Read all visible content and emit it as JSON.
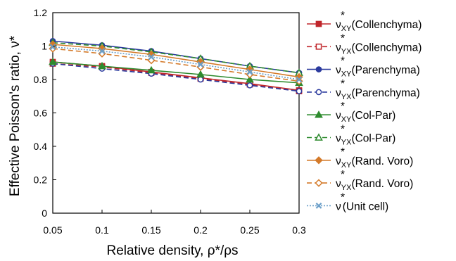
{
  "chart_data": {
    "type": "line",
    "title": "",
    "xlabel": "Relative density, ρ*/ρs",
    "ylabel": "Effective Poisson's ratio, ν*",
    "xlim": [
      0.05,
      0.3
    ],
    "ylim": [
      0,
      1.2
    ],
    "x": [
      0.05,
      0.1,
      0.15,
      0.2,
      0.25,
      0.3
    ],
    "x_tick_labels": [
      "0.05",
      "0.1",
      "0.15",
      "0.2",
      "0.25",
      "0.3"
    ],
    "y_tick_labels": [
      "0",
      "0.2",
      "0.4",
      "0.6",
      "0.8",
      "1",
      "1.2"
    ],
    "grid": false,
    "legend_position": "right",
    "series": [
      {
        "name": "ν*XY (Collenchyma)",
        "sym": "ν",
        "sub": "XY",
        "tail": "(Collenchyma)",
        "color": "#c0262b",
        "dash": "solid",
        "marker": "square",
        "filled": true,
        "values": [
          0.905,
          0.88,
          0.845,
          0.81,
          0.775,
          0.735
        ]
      },
      {
        "name": "ν*YX (Collenchyma)",
        "sym": "ν",
        "sub": "YX",
        "tail": "(Collenchyma)",
        "color": "#c0262b",
        "dash": "dashed",
        "marker": "square",
        "filled": false,
        "values": [
          0.895,
          0.875,
          0.84,
          0.805,
          0.77,
          0.73
        ]
      },
      {
        "name": "ν*XY (Parenchyma)",
        "sym": "ν",
        "sub": "XY",
        "tail": "(Parenchyma)",
        "color": "#2b3a9e",
        "dash": "solid",
        "marker": "circle",
        "filled": true,
        "values": [
          1.03,
          1.005,
          0.97,
          0.925,
          0.88,
          0.84
        ]
      },
      {
        "name": "ν*YX (Parenchyma)",
        "sym": "ν",
        "sub": "YX",
        "tail": "(Parenchyma)",
        "color": "#2b3a9e",
        "dash": "dashed",
        "marker": "circle",
        "filled": false,
        "values": [
          0.895,
          0.865,
          0.835,
          0.8,
          0.765,
          0.73
        ]
      },
      {
        "name": "ν*XY (Col-Par)",
        "sym": "ν",
        "sub": "XY",
        "tail": "(Col-Par)",
        "color": "#2e8b2e",
        "dash": "solid",
        "marker": "triangle",
        "filled": true,
        "values": [
          0.905,
          0.88,
          0.855,
          0.83,
          0.8,
          0.78
        ]
      },
      {
        "name": "ν*YX (Col-Par)",
        "sym": "ν",
        "sub": "YX",
        "tail": "(Col-Par)",
        "color": "#2e8b2e",
        "dash": "dashed",
        "marker": "triangle",
        "filled": false,
        "values": [
          1.02,
          1.0,
          0.965,
          0.925,
          0.88,
          0.84
        ]
      },
      {
        "name": "ν*XY (Rand. Voro)",
        "sym": "ν",
        "sub": "XY",
        "tail": "(Rand. Voro)",
        "color": "#d47a2a",
        "dash": "solid",
        "marker": "diamond",
        "filled": true,
        "values": [
          1.01,
          0.985,
          0.95,
          0.905,
          0.86,
          0.815
        ]
      },
      {
        "name": "ν*YX (Rand. Voro)",
        "sym": "ν",
        "sub": "YX",
        "tail": "(Rand. Voro)",
        "color": "#d47a2a",
        "dash": "dashed",
        "marker": "diamond",
        "filled": false,
        "values": [
          0.985,
          0.955,
          0.915,
          0.875,
          0.83,
          0.79
        ]
      },
      {
        "name": "ν*(Unit cell)",
        "sym": "ν",
        "sub": "",
        "tail": "(Unit cell)",
        "color": "#6b9fc9",
        "dash": "dotted",
        "marker": "x",
        "filled": true,
        "values": [
          0.995,
          0.97,
          0.935,
          0.89,
          0.845,
          0.8
        ]
      }
    ]
  }
}
